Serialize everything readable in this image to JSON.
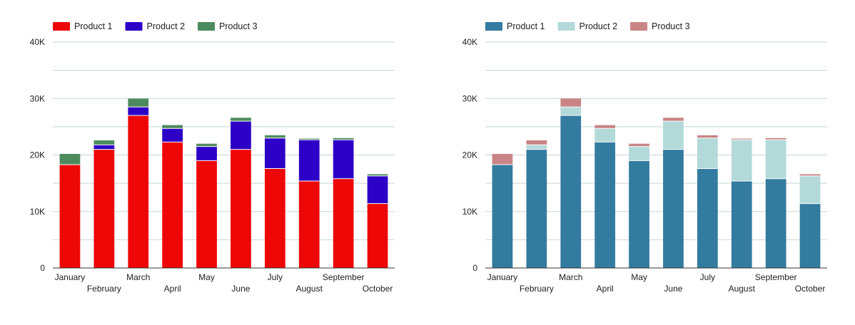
{
  "chart_data": [
    {
      "type": "bar",
      "stacked": true,
      "legend_position": "top-left",
      "grid": true,
      "categories": [
        "January",
        "February",
        "March",
        "April",
        "May",
        "June",
        "July",
        "August",
        "September",
        "October"
      ],
      "ylim": [
        0,
        40000
      ],
      "yticks": [
        0,
        10000,
        20000,
        30000,
        40000
      ],
      "ytick_labels": [
        "0",
        "10K",
        "20K",
        "30K",
        "40K"
      ],
      "series": [
        {
          "name": "Product 1",
          "color": "#ee0707",
          "values": [
            18300,
            21000,
            27000,
            22300,
            19000,
            21000,
            17600,
            15400,
            15800,
            11400
          ]
        },
        {
          "name": "Product 2",
          "color": "#2c00c6",
          "values": [
            0,
            800,
            1500,
            2400,
            2500,
            5000,
            5400,
            7300,
            6900,
            4900
          ]
        },
        {
          "name": "Product 3",
          "color": "#4d8b5e",
          "values": [
            1900,
            800,
            1500,
            600,
            500,
            600,
            500,
            200,
            300,
            300
          ]
        }
      ]
    },
    {
      "type": "bar",
      "stacked": true,
      "legend_position": "top-left",
      "grid": true,
      "categories": [
        "January",
        "February",
        "March",
        "April",
        "May",
        "June",
        "July",
        "August",
        "September",
        "October"
      ],
      "ylim": [
        0,
        40000
      ],
      "yticks": [
        0,
        10000,
        20000,
        30000,
        40000
      ],
      "ytick_labels": [
        "0",
        "10K",
        "20K",
        "30K",
        "40K"
      ],
      "series": [
        {
          "name": "Product 1",
          "color": "#337b9f",
          "values": [
            18300,
            21000,
            27000,
            22300,
            19000,
            21000,
            17600,
            15400,
            15800,
            11400
          ]
        },
        {
          "name": "Product 2",
          "color": "#b3d9d9",
          "values": [
            0,
            800,
            1500,
            2400,
            2500,
            5000,
            5400,
            7300,
            6900,
            4900
          ]
        },
        {
          "name": "Product 3",
          "color": "#c98585",
          "values": [
            1900,
            800,
            1500,
            600,
            500,
            600,
            500,
            200,
            300,
            300
          ]
        }
      ]
    }
  ]
}
